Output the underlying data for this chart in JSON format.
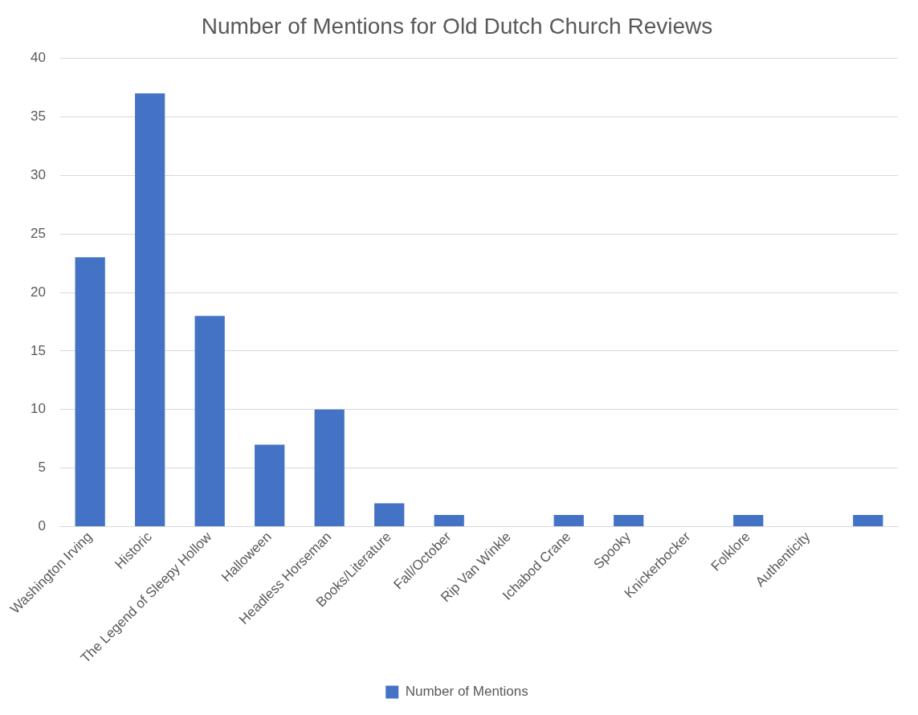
{
  "chart_data": {
    "type": "bar",
    "title": "Number of Mentions for Old Dutch Church Reviews",
    "categories": [
      "Washington Irving",
      "Historic",
      "The Legend of Sleepy Hollow",
      "Halloween",
      "Headless Horseman",
      "Books/Literature",
      "Fall/October",
      "Rip Van Winkle",
      "Ichabod Crane",
      "Spooky",
      "Knickerbocker",
      "Folklore",
      "Authenticity",
      null
    ],
    "series": [
      {
        "name": "Number of Mentions",
        "color": "#4472c4",
        "values": [
          23,
          37,
          18,
          7,
          10,
          2,
          1,
          0,
          1,
          1,
          0,
          1,
          0,
          1
        ]
      }
    ],
    "ylim": [
      0,
      40
    ],
    "yticks": [
      0,
      5,
      10,
      15,
      20,
      25,
      30,
      35,
      40
    ],
    "grid": "y",
    "legend": "bottom"
  }
}
